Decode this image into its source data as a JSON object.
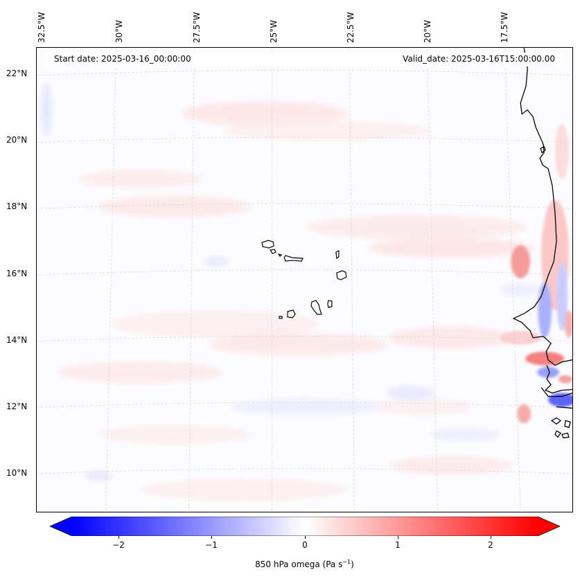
{
  "map": {
    "longitude_labels": [
      "32.5°W",
      "30°W",
      "27.5°W",
      "25°W",
      "22.5°W",
      "20°W",
      "17.5°W"
    ],
    "latitude_labels": [
      "22°N",
      "20°N",
      "18°N",
      "16°N",
      "14°N",
      "12°N",
      "10°N"
    ],
    "start_date": "Start date: 2025-03-16_00:00:00",
    "valid_date": "Valid_date: 2025-03-16T15:00:00.00",
    "field": "850 hPa omega",
    "colorbar": {
      "label_main": "850 hPa omega (Pa s",
      "label_exp": "−1",
      "label_close": ")",
      "ticks": [
        "−2",
        "−1",
        "0",
        "1",
        "2"
      ],
      "min": -2.5,
      "max": 2.5,
      "low_color": "#0000ff",
      "mid_color": "#ffffff",
      "high_color": "#ff0000"
    }
  }
}
